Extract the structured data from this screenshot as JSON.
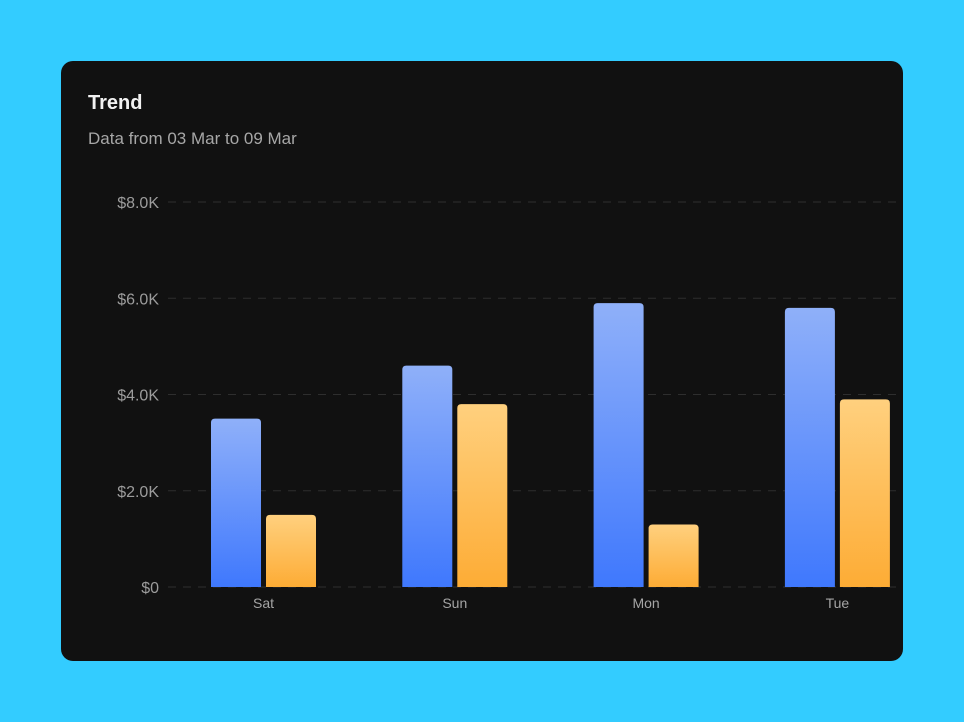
{
  "card": {
    "title": "Trend",
    "subtitle": "Data from 03 Mar to 09 Mar"
  },
  "chart_data": {
    "type": "bar",
    "categories": [
      "Sat",
      "Sun",
      "Mon",
      "Tue"
    ],
    "series": [
      {
        "color_top": "#8fb0f9",
        "color_bottom": "#3f78fd",
        "values": [
          3500,
          4600,
          5900,
          5800
        ]
      },
      {
        "color_top": "#ffd07e",
        "color_bottom": "#fdac35",
        "values": [
          1500,
          3800,
          1300,
          3900
        ]
      }
    ],
    "y_ticks": [
      {
        "value": 0,
        "label": "$0"
      },
      {
        "value": 2000,
        "label": "$2.0K"
      },
      {
        "value": 4000,
        "label": "$4.0K"
      },
      {
        "value": 6000,
        "label": "$6.0K"
      },
      {
        "value": 8000,
        "label": "$8.0K"
      }
    ],
    "ylim": [
      0,
      8000
    ],
    "grid": true,
    "grid_style": "dashed",
    "legend": false,
    "title": "",
    "xlabel": "",
    "ylabel": ""
  },
  "colors": {
    "page_background": "#33CCFF",
    "card_background": "#111111",
    "gridline": "#2e2e2e"
  }
}
